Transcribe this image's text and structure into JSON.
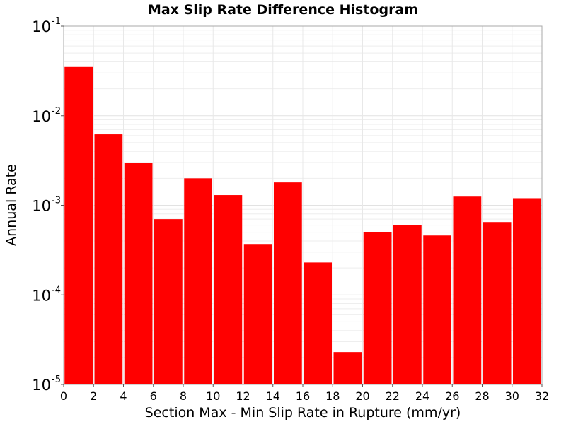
{
  "chart_data": {
    "type": "bar",
    "title": "Max Slip Rate Difference Histogram",
    "xlabel": "Section Max - Min Slip Rate in Rupture (mm/yr)",
    "ylabel": "Annual Rate",
    "x_ticks": [
      "0",
      "2",
      "4",
      "6",
      "8",
      "10",
      "12",
      "14",
      "16",
      "18",
      "20",
      "22",
      "24",
      "26",
      "28",
      "30",
      "32"
    ],
    "y_scale": "log",
    "y_ticks": [
      {
        "base": "10",
        "exp": "-5"
      },
      {
        "base": "10",
        "exp": "-4"
      },
      {
        "base": "10",
        "exp": "-3"
      },
      {
        "base": "10",
        "exp": "-2"
      },
      {
        "base": "10",
        "exp": "-1"
      }
    ],
    "xlim": [
      0,
      32
    ],
    "ylim": [
      1e-05,
      0.1
    ],
    "bin_width": 2,
    "bins": [
      {
        "x_start": 0,
        "x_end": 2,
        "value": 0.035
      },
      {
        "x_start": 2,
        "x_end": 4,
        "value": 0.0062
      },
      {
        "x_start": 4,
        "x_end": 6,
        "value": 0.003
      },
      {
        "x_start": 6,
        "x_end": 8,
        "value": 0.0007
      },
      {
        "x_start": 8,
        "x_end": 10,
        "value": 0.002
      },
      {
        "x_start": 10,
        "x_end": 12,
        "value": 0.0013
      },
      {
        "x_start": 12,
        "x_end": 14,
        "value": 0.00037
      },
      {
        "x_start": 14,
        "x_end": 16,
        "value": 0.0018
      },
      {
        "x_start": 16,
        "x_end": 18,
        "value": 0.00023
      },
      {
        "x_start": 18,
        "x_end": 20,
        "value": 2.3e-05
      },
      {
        "x_start": 20,
        "x_end": 22,
        "value": 0.0005
      },
      {
        "x_start": 22,
        "x_end": 24,
        "value": 0.0006
      },
      {
        "x_start": 24,
        "x_end": 26,
        "value": 0.00046
      },
      {
        "x_start": 26,
        "x_end": 28,
        "value": 0.00125
      },
      {
        "x_start": 28,
        "x_end": 30,
        "value": 0.00065
      },
      {
        "x_start": 30,
        "x_end": 32,
        "value": 0.0012
      }
    ],
    "bar_color": "#ff0000",
    "grid": true,
    "legend": false
  }
}
